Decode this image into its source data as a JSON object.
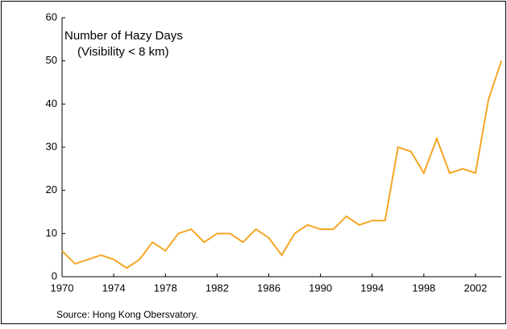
{
  "chart_data": {
    "type": "line",
    "title": "Number of Hazy Days",
    "subtitle": "(Visibility < 8 km)",
    "source": "Source: Hong Kong Obersvatory.",
    "x": [
      1970,
      1971,
      1972,
      1973,
      1974,
      1975,
      1976,
      1977,
      1978,
      1979,
      1980,
      1981,
      1982,
      1983,
      1984,
      1985,
      1986,
      1987,
      1988,
      1989,
      1990,
      1991,
      1992,
      1993,
      1994,
      1995,
      1996,
      1997,
      1998,
      1999,
      2000,
      2001,
      2002,
      2003,
      2004
    ],
    "series": [
      {
        "color": "#f5a623",
        "values": [
          6,
          3,
          4,
          5,
          4,
          2,
          4,
          8,
          6,
          10,
          11,
          8,
          10,
          10,
          8,
          11,
          9,
          5,
          10,
          12,
          11,
          11,
          14,
          12,
          13,
          13,
          30,
          29,
          24,
          32,
          24,
          25,
          24,
          41,
          50
        ]
      }
    ],
    "xlim": [
      1970,
      2004
    ],
    "xticks": [
      1970,
      1974,
      1978,
      1982,
      1986,
      1990,
      1994,
      1998,
      2002
    ],
    "ylim": [
      0,
      60
    ],
    "yticks": [
      0,
      10,
      20,
      30,
      40,
      50,
      60
    ],
    "grid": false
  }
}
